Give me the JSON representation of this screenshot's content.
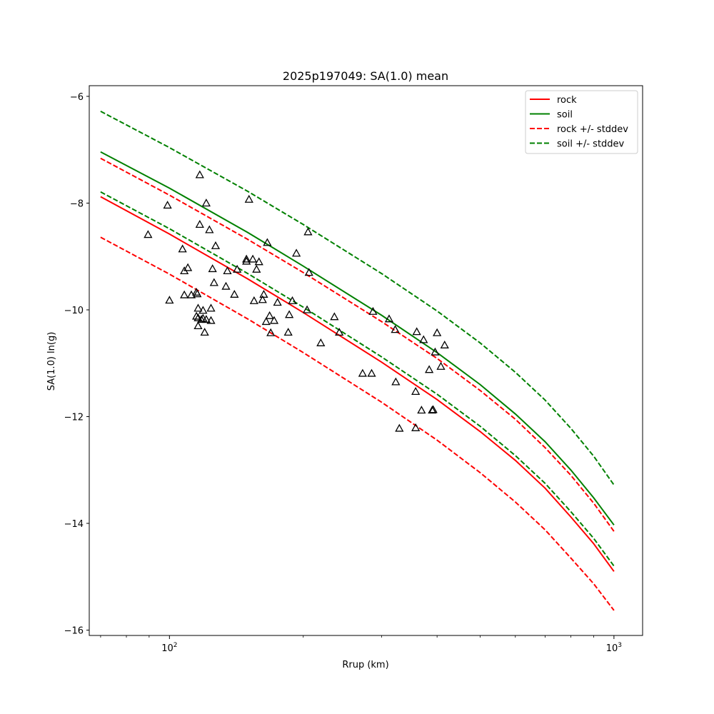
{
  "chart_data": {
    "type": "line",
    "title": "2025p197049: SA(1.0) mean",
    "xlabel": "Rrup (km)",
    "ylabel": "SA(1.0) ln(g)",
    "xscale": "log",
    "xlim": [
      66,
      1160
    ],
    "ylim": [
      -16.1,
      -5.8
    ],
    "grid": false,
    "legend_position": "top-right",
    "x_ticks": [
      {
        "value": 100,
        "base": "10",
        "exp": "2"
      },
      {
        "value": 1000,
        "base": "10",
        "exp": "3"
      }
    ],
    "y_ticks": [
      -6,
      -8,
      -10,
      -12,
      -14,
      -16
    ],
    "series": [
      {
        "name": "rock",
        "style": "solid",
        "color": "#ff0000",
        "x": [
          70,
          100,
          150,
          200,
          300,
          400,
          500,
          600,
          700,
          800,
          900,
          1000
        ],
        "y": [
          -7.88,
          -8.58,
          -9.42,
          -10.05,
          -10.98,
          -11.68,
          -12.28,
          -12.82,
          -13.34,
          -13.88,
          -14.38,
          -14.9
        ]
      },
      {
        "name": "soil",
        "style": "solid",
        "color": "#008000",
        "x": [
          70,
          100,
          150,
          200,
          300,
          400,
          500,
          600,
          700,
          800,
          900,
          1000
        ],
        "y": [
          -7.04,
          -7.72,
          -8.55,
          -9.18,
          -10.1,
          -10.8,
          -11.4,
          -11.95,
          -12.47,
          -13.0,
          -13.52,
          -14.03
        ]
      },
      {
        "name": "rock +/- stddev",
        "style": "dashed",
        "color": "#ff0000",
        "x": [
          70,
          100,
          150,
          200,
          300,
          400,
          500,
          600,
          700,
          800,
          900,
          1000
        ],
        "y": [
          -7.16,
          -7.85,
          -8.68,
          -9.3,
          -10.22,
          -10.91,
          -11.51,
          -12.05,
          -12.58,
          -13.1,
          -13.62,
          -14.15
        ]
      },
      {
        "name": "",
        "style": "dashed",
        "color": "#ff0000",
        "x": [
          70,
          100,
          150,
          200,
          300,
          400,
          500,
          600,
          700,
          800,
          900,
          1000
        ],
        "y": [
          -8.64,
          -9.33,
          -10.17,
          -10.8,
          -11.73,
          -12.44,
          -13.05,
          -13.6,
          -14.12,
          -14.65,
          -15.13,
          -15.63
        ]
      },
      {
        "name": "soil +/- stddev",
        "style": "dashed",
        "color": "#008000",
        "x": [
          70,
          100,
          150,
          200,
          300,
          400,
          500,
          600,
          700,
          800,
          900,
          1000
        ],
        "y": [
          -6.28,
          -6.96,
          -7.78,
          -8.4,
          -9.32,
          -10.02,
          -10.62,
          -11.17,
          -11.69,
          -12.22,
          -12.74,
          -13.28
        ]
      },
      {
        "name": "",
        "style": "dashed",
        "color": "#008000",
        "x": [
          70,
          100,
          150,
          200,
          300,
          400,
          500,
          600,
          700,
          800,
          900,
          1000
        ],
        "y": [
          -7.79,
          -8.48,
          -9.32,
          -9.95,
          -10.88,
          -11.58,
          -12.18,
          -12.73,
          -13.25,
          -13.78,
          -14.28,
          -14.8
        ]
      }
    ],
    "observations": {
      "marker": "open-triangle",
      "color": "#000000",
      "points": [
        [
          89.5,
          -8.59
        ],
        [
          99,
          -8.04
        ],
        [
          100,
          -9.82
        ],
        [
          107,
          -8.86
        ],
        [
          108,
          -9.27
        ],
        [
          110,
          -9.21
        ],
        [
          108,
          -9.72
        ],
        [
          112,
          -9.72
        ],
        [
          115,
          -9.67
        ],
        [
          115.5,
          -9.7
        ],
        [
          116,
          -9.97
        ],
        [
          115,
          -10.12
        ],
        [
          116,
          -10.15
        ],
        [
          116,
          -10.3
        ],
        [
          117,
          -7.47
        ],
        [
          117,
          -8.4
        ],
        [
          118,
          -10.18
        ],
        [
          119,
          -10.16
        ],
        [
          119,
          -10.01
        ],
        [
          120,
          -10.42
        ],
        [
          121,
          -10.18
        ],
        [
          121,
          -8.0
        ],
        [
          123,
          -8.5
        ],
        [
          124,
          -10.2
        ],
        [
          124,
          -9.97
        ],
        [
          125,
          -9.23
        ],
        [
          126,
          -9.49
        ],
        [
          127,
          -8.8
        ],
        [
          134,
          -9.56
        ],
        [
          135,
          -9.27
        ],
        [
          140,
          -9.71
        ],
        [
          142,
          -9.24
        ],
        [
          149,
          -9.09
        ],
        [
          149,
          -9.05
        ],
        [
          151,
          -7.93
        ],
        [
          154,
          -9.05
        ],
        [
          155,
          -9.83
        ],
        [
          157,
          -9.24
        ],
        [
          159,
          -9.1
        ],
        [
          162,
          -9.81
        ],
        [
          163,
          -9.71
        ],
        [
          165,
          -10.22
        ],
        [
          166,
          -8.74
        ],
        [
          168,
          -10.11
        ],
        [
          169,
          -10.43
        ],
        [
          172,
          -10.2
        ],
        [
          175,
          -9.86
        ],
        [
          185,
          -10.42
        ],
        [
          186,
          -10.09
        ],
        [
          189,
          -9.83
        ],
        [
          193,
          -8.94
        ],
        [
          204,
          -10.0
        ],
        [
          205,
          -8.54
        ],
        [
          206,
          -9.3
        ],
        [
          219,
          -10.62
        ],
        [
          235,
          -10.13
        ],
        [
          241,
          -10.42
        ],
        [
          272,
          -11.19
        ],
        [
          285,
          -11.19
        ],
        [
          287,
          -10.03
        ],
        [
          312,
          -10.17
        ],
        [
          322,
          -10.37
        ],
        [
          323,
          -11.35
        ],
        [
          329,
          -12.22
        ],
        [
          358,
          -11.53
        ],
        [
          358,
          -12.21
        ],
        [
          360,
          -10.41
        ],
        [
          369,
          -11.88
        ],
        [
          373,
          -10.56
        ],
        [
          384,
          -11.12
        ],
        [
          390,
          -11.88
        ],
        [
          392,
          -11.87
        ],
        [
          396,
          -10.79
        ],
        [
          400,
          -10.43
        ],
        [
          408,
          -11.06
        ],
        [
          416,
          -10.66
        ]
      ]
    }
  },
  "legend": {
    "items": [
      {
        "label": "rock",
        "color": "#ff0000",
        "style": "solid"
      },
      {
        "label": "soil",
        "color": "#008000",
        "style": "solid"
      },
      {
        "label": "rock +/- stddev",
        "color": "#ff0000",
        "style": "dashed"
      },
      {
        "label": "soil +/- stddev",
        "color": "#008000",
        "style": "dashed"
      }
    ]
  }
}
